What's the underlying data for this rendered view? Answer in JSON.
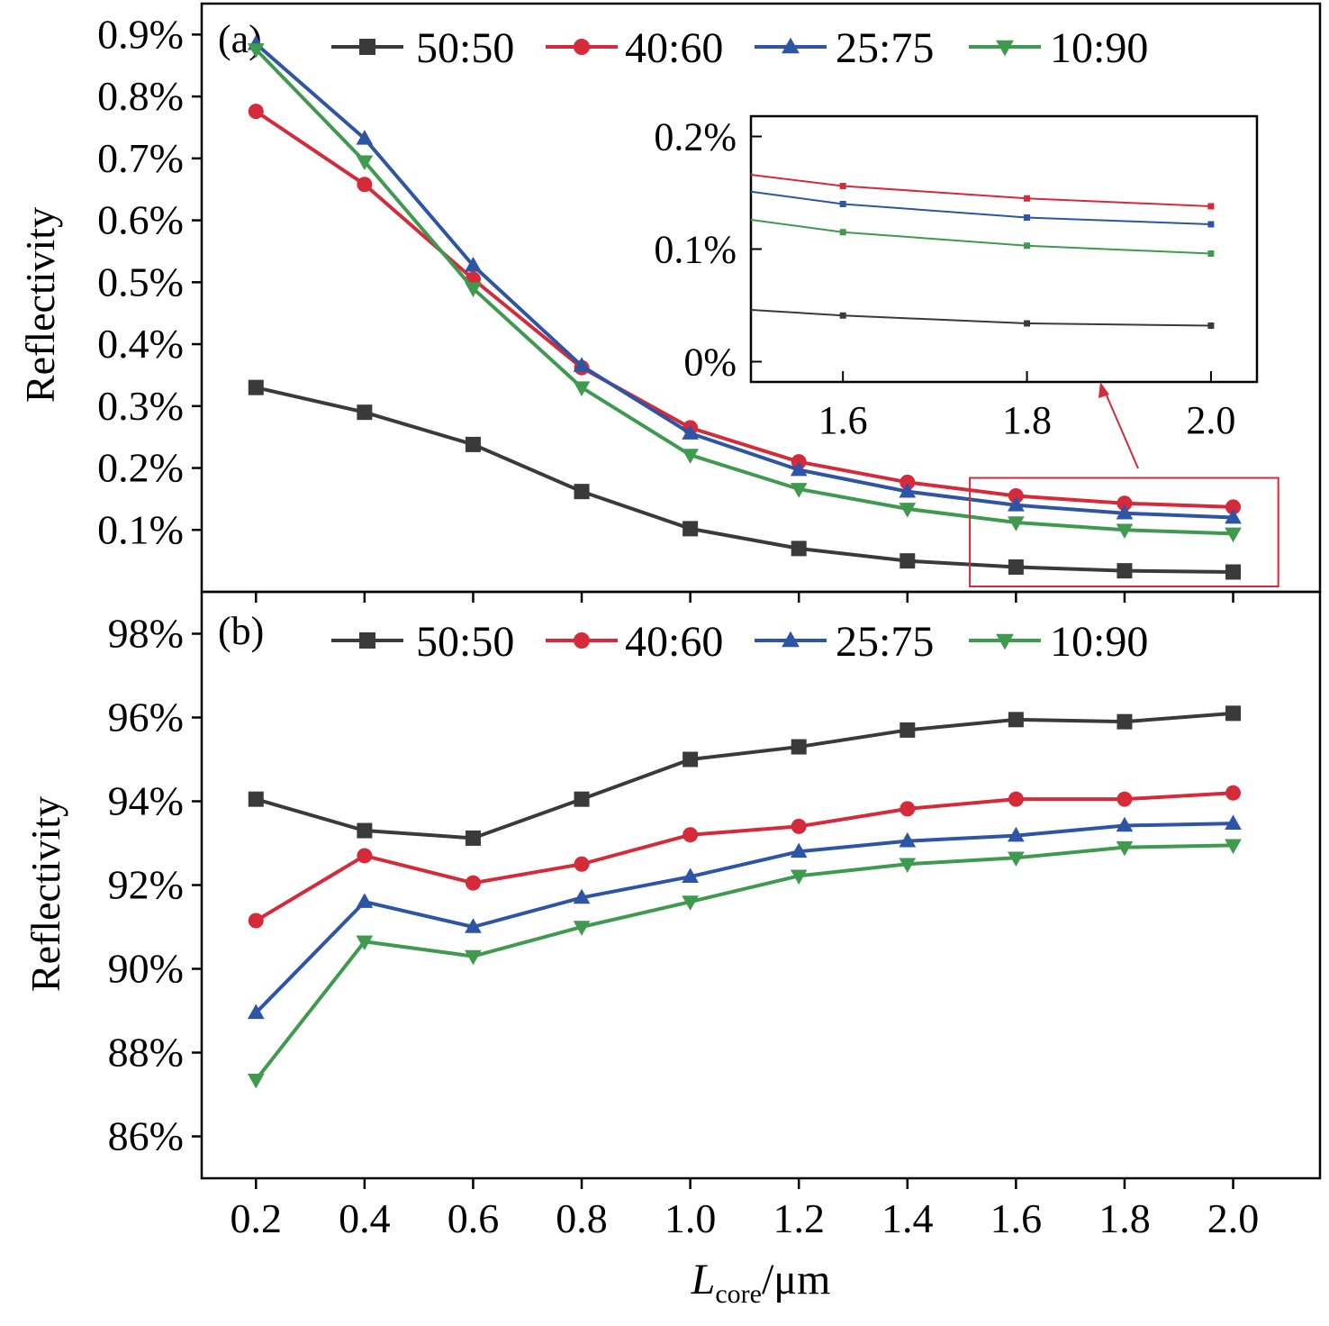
{
  "chart_data": [
    {
      "id": "a",
      "type": "line",
      "panel_label": "(a)",
      "ylabel": "Reflectivity",
      "xlabel_main": "",
      "xlabel_sub": "",
      "xlabel_unit": "",
      "ylim": [
        0,
        0.95
      ],
      "xlim": [
        0.1,
        2.16
      ],
      "x_ticks": [
        0.2,
        0.4,
        0.6,
        0.8,
        1.0,
        1.2,
        1.4,
        1.6,
        1.8,
        2.0
      ],
      "x_tick_labels": [
        "0.2",
        "0.4",
        "0.6",
        "0.8",
        "1.0",
        "1.2",
        "1.4",
        "1.6",
        "1.8",
        "2.0"
      ],
      "show_x_tick_labels": false,
      "y_ticks": [
        0.1,
        0.2,
        0.3,
        0.4,
        0.5,
        0.6,
        0.7,
        0.8,
        0.9
      ],
      "y_tick_labels": [
        "0.1%",
        "0.2%",
        "0.3%",
        "0.4%",
        "0.5%",
        "0.6%",
        "0.7%",
        "0.8%",
        "0.9%"
      ],
      "x": [
        0.2,
        0.4,
        0.6,
        0.8,
        1.0,
        1.2,
        1.4,
        1.6,
        1.8,
        2.0
      ],
      "series": [
        {
          "name": "50:50",
          "color": "#3a3a3a",
          "marker": "square",
          "values": [
            0.33,
            0.29,
            0.238,
            0.162,
            0.102,
            0.07,
            0.05,
            0.04,
            0.034,
            0.032
          ]
        },
        {
          "name": "40:60",
          "color": "#d42a3a",
          "marker": "circle",
          "values": [
            0.776,
            0.658,
            0.505,
            0.362,
            0.265,
            0.21,
            0.177,
            0.155,
            0.143,
            0.137
          ]
        },
        {
          "name": "25:75",
          "color": "#2e55a5",
          "marker": "triangle-up",
          "values": [
            0.885,
            0.732,
            0.527,
            0.365,
            0.256,
            0.197,
            0.162,
            0.14,
            0.127,
            0.12
          ]
        },
        {
          "name": "10:90",
          "color": "#3f9a4f",
          "marker": "triangle-down",
          "values": [
            0.876,
            0.695,
            0.49,
            0.33,
            0.221,
            0.166,
            0.134,
            0.112,
            0.1,
            0.094
          ]
        }
      ],
      "legend_position": "top",
      "highlight_box": {
        "x": [
          1.5,
          2.05
        ],
        "y": [
          0.0,
          0.2
        ]
      },
      "inset": {
        "xlim": [
          1.5,
          2.05
        ],
        "ylim": [
          -0.018,
          0.218
        ],
        "x_ticks": [
          1.6,
          1.8,
          2.0
        ],
        "x_tick_labels": [
          "1.6",
          "1.8",
          "2.0"
        ],
        "y_ticks": [
          0.0,
          0.1,
          0.2
        ],
        "y_tick_labels": [
          "0%",
          "0.1%",
          "0.2%"
        ],
        "x": [
          1.5,
          1.6,
          1.8,
          2.0
        ],
        "series": [
          {
            "name": "50:50",
            "color": "#3a3a3a",
            "values": [
              0.046,
              0.041,
              0.034,
              0.032
            ]
          },
          {
            "name": "40:60",
            "color": "#d42a3a",
            "values": [
              0.166,
              0.156,
              0.145,
              0.138
            ]
          },
          {
            "name": "25:75",
            "color": "#2e55a5",
            "values": [
              0.151,
              0.14,
              0.128,
              0.122
            ]
          },
          {
            "name": "10:90",
            "color": "#3f9a4f",
            "values": [
              0.126,
              0.115,
              0.103,
              0.096
            ]
          }
        ]
      }
    },
    {
      "id": "b",
      "type": "line",
      "panel_label": "(b)",
      "ylabel": "Reflectivity",
      "xlabel_main": "L",
      "xlabel_sub": "core",
      "xlabel_unit": "/μm",
      "ylim": [
        85.0,
        99.0
      ],
      "xlim": [
        0.1,
        2.16
      ],
      "x_ticks": [
        0.2,
        0.4,
        0.6,
        0.8,
        1.0,
        1.2,
        1.4,
        1.6,
        1.8,
        2.0
      ],
      "x_tick_labels": [
        "0.2",
        "0.4",
        "0.6",
        "0.8",
        "1.0",
        "1.2",
        "1.4",
        "1.6",
        "1.8",
        "2.0"
      ],
      "show_x_tick_labels": true,
      "y_ticks": [
        86,
        88,
        90,
        92,
        94,
        96,
        98
      ],
      "y_tick_labels": [
        "86%",
        "88%",
        "90%",
        "92%",
        "94%",
        "96%",
        "98%"
      ],
      "x": [
        0.2,
        0.4,
        0.6,
        0.8,
        1.0,
        1.2,
        1.4,
        1.6,
        1.8,
        2.0
      ],
      "series": [
        {
          "name": "50:50",
          "color": "#3a3a3a",
          "marker": "square",
          "values": [
            94.05,
            93.3,
            93.12,
            94.05,
            95.0,
            95.3,
            95.7,
            95.95,
            95.9,
            96.1
          ]
        },
        {
          "name": "40:60",
          "color": "#d42a3a",
          "marker": "circle",
          "values": [
            91.15,
            92.7,
            92.05,
            92.5,
            93.2,
            93.4,
            93.82,
            94.05,
            94.05,
            94.2
          ]
        },
        {
          "name": "25:75",
          "color": "#2e55a5",
          "marker": "triangle-up",
          "values": [
            88.95,
            91.6,
            91.0,
            91.7,
            92.2,
            92.8,
            93.05,
            93.18,
            93.42,
            93.47
          ]
        },
        {
          "name": "10:90",
          "color": "#3f9a4f",
          "marker": "triangle-down",
          "values": [
            87.35,
            90.65,
            90.3,
            91.0,
            91.6,
            92.22,
            92.5,
            92.65,
            92.9,
            92.95
          ]
        }
      ],
      "legend_position": "top"
    }
  ]
}
